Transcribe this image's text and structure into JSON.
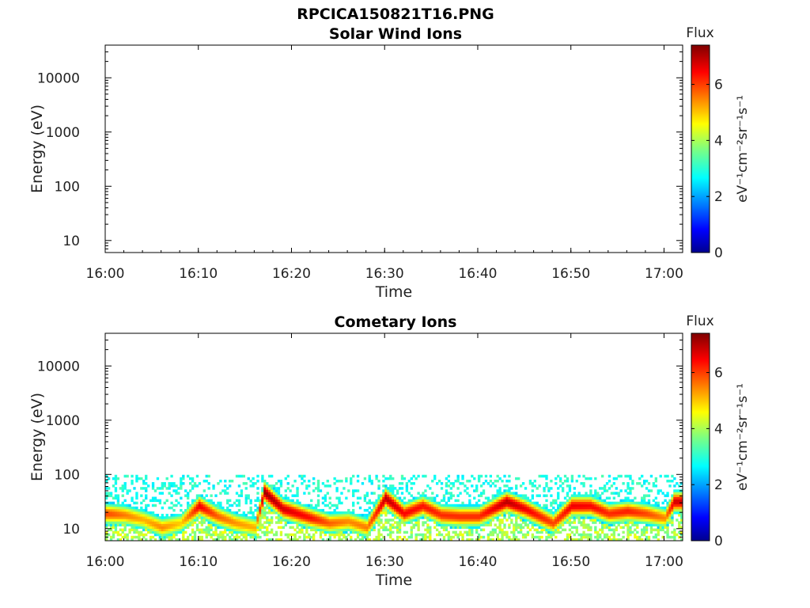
{
  "figure": {
    "title": "RPCICA150821T16.PNG",
    "colors": {
      "background": "#ffffff",
      "axes": "#000000",
      "colormap": "jet"
    }
  },
  "chart_data": [
    {
      "type": "heatmap",
      "title": "Solar Wind Ions",
      "xlabel": "Time",
      "ylabel": "Energy (eV)",
      "x_range": [
        "16:00",
        "17:02"
      ],
      "x_ticks": [
        "16:00",
        "16:10",
        "16:20",
        "16:30",
        "16:40",
        "16:50",
        "17:00"
      ],
      "y_scale": "log",
      "y_range": [
        6,
        40000
      ],
      "y_ticks": [
        {
          "value": 10,
          "label": "10"
        },
        {
          "value": 100,
          "label": "100"
        },
        {
          "value": 1000,
          "label": "1000"
        },
        {
          "value": 10000,
          "label": "10000"
        }
      ],
      "colorbar": {
        "title": "Flux",
        "label": "eV⁻¹cm⁻²sr⁻¹s⁻¹",
        "range": [
          0,
          7.4
        ],
        "ticks": [
          0,
          2,
          4,
          6
        ]
      },
      "series": []
    },
    {
      "type": "heatmap",
      "title": "Cometary Ions",
      "xlabel": "Time",
      "ylabel": "Energy (eV)",
      "x_range": [
        "16:00",
        "17:02"
      ],
      "x_ticks": [
        "16:00",
        "16:10",
        "16:20",
        "16:30",
        "16:40",
        "16:50",
        "17:00"
      ],
      "y_scale": "log",
      "y_range": [
        6,
        40000
      ],
      "y_ticks": [
        {
          "value": 10,
          "label": "10"
        },
        {
          "value": 100,
          "label": "100"
        },
        {
          "value": 1000,
          "label": "1000"
        },
        {
          "value": 10000,
          "label": "10000"
        }
      ],
      "colorbar": {
        "title": "Flux",
        "label": "eV⁻¹cm⁻²sr⁻¹s⁻¹",
        "range": [
          0,
          7.4
        ],
        "ticks": [
          0,
          2,
          4,
          6
        ]
      },
      "series": [
        {
          "time": "16:00",
          "peak_energy_ev": 18,
          "peak_flux": 6.0
        },
        {
          "time": "16:02",
          "peak_energy_ev": 17,
          "peak_flux": 5.6
        },
        {
          "time": "16:04",
          "peak_energy_ev": 14,
          "peak_flux": 5.2
        },
        {
          "time": "16:06",
          "peak_energy_ev": 10,
          "peak_flux": 5.5
        },
        {
          "time": "16:08",
          "peak_energy_ev": 12,
          "peak_flux": 5.0
        },
        {
          "time": "16:10",
          "peak_energy_ev": 25,
          "peak_flux": 6.6
        },
        {
          "time": "16:12",
          "peak_energy_ev": 16,
          "peak_flux": 5.8
        },
        {
          "time": "16:14",
          "peak_energy_ev": 12,
          "peak_flux": 5.4
        },
        {
          "time": "16:16",
          "peak_energy_ev": 10,
          "peak_flux": 5.2
        },
        {
          "time": "16:17",
          "peak_energy_ev": 45,
          "peak_flux": 7.2
        },
        {
          "time": "16:19",
          "peak_energy_ev": 22,
          "peak_flux": 6.8
        },
        {
          "time": "16:22",
          "peak_energy_ev": 15,
          "peak_flux": 6.4
        },
        {
          "time": "16:24",
          "peak_energy_ev": 12,
          "peak_flux": 5.8
        },
        {
          "time": "16:26",
          "peak_energy_ev": 13,
          "peak_flux": 5.5
        },
        {
          "time": "16:28",
          "peak_energy_ev": 10,
          "peak_flux": 5.6
        },
        {
          "time": "16:30",
          "peak_energy_ev": 35,
          "peak_flux": 7.0
        },
        {
          "time": "16:32",
          "peak_energy_ev": 18,
          "peak_flux": 6.5
        },
        {
          "time": "16:34",
          "peak_energy_ev": 25,
          "peak_flux": 6.4
        },
        {
          "time": "16:36",
          "peak_energy_ev": 17,
          "peak_flux": 6.2
        },
        {
          "time": "16:38",
          "peak_energy_ev": 16,
          "peak_flux": 6.2
        },
        {
          "time": "16:40",
          "peak_energy_ev": 16,
          "peak_flux": 6.2
        },
        {
          "time": "16:43",
          "peak_energy_ev": 30,
          "peak_flux": 7.0
        },
        {
          "time": "16:45",
          "peak_energy_ev": 22,
          "peak_flux": 6.6
        },
        {
          "time": "16:48",
          "peak_energy_ev": 12,
          "peak_flux": 6.0
        },
        {
          "time": "16:50",
          "peak_energy_ev": 25,
          "peak_flux": 6.6
        },
        {
          "time": "16:52",
          "peak_energy_ev": 25,
          "peak_flux": 6.5
        },
        {
          "time": "16:54",
          "peak_energy_ev": 18,
          "peak_flux": 6.2
        },
        {
          "time": "16:56",
          "peak_energy_ev": 20,
          "peak_flux": 6.3
        },
        {
          "time": "16:58",
          "peak_energy_ev": 18,
          "peak_flux": 6.0
        },
        {
          "time": "17:00",
          "peak_energy_ev": 15,
          "peak_flux": 5.5
        },
        {
          "time": "17:01",
          "peak_energy_ev": 30,
          "peak_flux": 6.8
        }
      ]
    }
  ]
}
